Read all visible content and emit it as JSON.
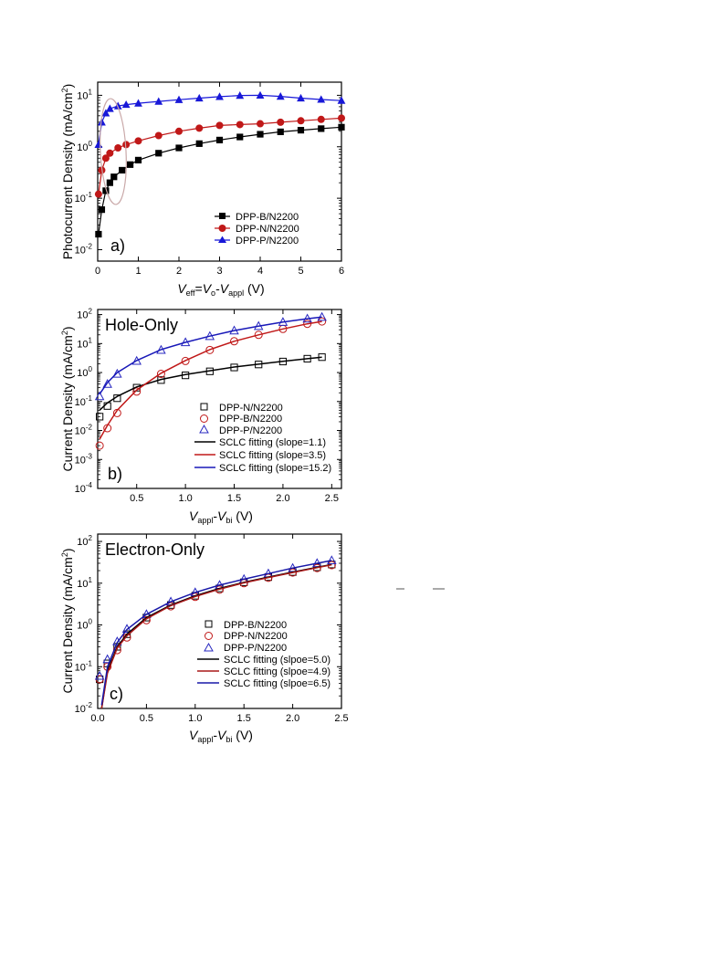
{
  "chart_data": [
    {
      "type": "scatter",
      "yscale": "log",
      "panel_label": "a)",
      "xlabel": "Veff=Vo-Vappl (V)",
      "ylabel": "Photocurrent Density (mA/cm2)",
      "xlim": [
        0,
        6
      ],
      "ylim": [
        0.006,
        18
      ],
      "xticks": [
        "0",
        "1",
        "2",
        "3",
        "4",
        "5",
        "6"
      ],
      "yticks": [
        "10-2",
        "10-1",
        "100",
        "101"
      ],
      "legend_position": "lower-right",
      "series": [
        {
          "name": "DPP-B/N2200",
          "color": "#000000",
          "marker": "square",
          "x": [
            0.02,
            0.1,
            0.2,
            0.3,
            0.4,
            0.6,
            0.8,
            1.0,
            1.5,
            2.0,
            2.5,
            3.0,
            3.5,
            4.0,
            4.5,
            5.0,
            5.5,
            6.0
          ],
          "y": [
            0.02,
            0.06,
            0.14,
            0.2,
            0.26,
            0.35,
            0.45,
            0.55,
            0.75,
            0.95,
            1.15,
            1.35,
            1.55,
            1.75,
            1.95,
            2.1,
            2.25,
            2.4
          ]
        },
        {
          "name": "DPP-N/N2200",
          "color": "#c01818",
          "marker": "circle",
          "x": [
            0.02,
            0.1,
            0.2,
            0.3,
            0.5,
            0.7,
            1.0,
            1.5,
            2.0,
            2.5,
            3.0,
            3.5,
            4.0,
            4.5,
            5.0,
            5.5,
            6.0
          ],
          "y": [
            0.12,
            0.35,
            0.6,
            0.75,
            0.95,
            1.1,
            1.3,
            1.65,
            2.0,
            2.3,
            2.6,
            2.7,
            2.8,
            3.0,
            3.2,
            3.4,
            3.6
          ]
        },
        {
          "name": "DPP-P/N2200",
          "color": "#1818d8",
          "marker": "triangle",
          "x": [
            0.02,
            0.1,
            0.2,
            0.3,
            0.5,
            0.7,
            1.0,
            1.5,
            2.0,
            2.5,
            3.0,
            3.5,
            4.0,
            4.5,
            5.0,
            5.5,
            6.0
          ],
          "y": [
            1.1,
            3.0,
            4.5,
            5.5,
            6.2,
            6.6,
            7.0,
            7.6,
            8.2,
            8.8,
            9.4,
            9.9,
            10.0,
            9.5,
            8.8,
            8.3,
            7.9
          ]
        }
      ],
      "annotations": [
        "ellipse around low-Veff region (~0.1-0.6 V)"
      ]
    },
    {
      "type": "scatter",
      "yscale": "log",
      "title": "Hole-Only",
      "panel_label": "b)",
      "xlabel": "Vappl-Vbi (V)",
      "ylabel": "Current Density (mA/cm2)",
      "xlim": [
        0.1,
        2.6
      ],
      "ylim": [
        0.0001,
        150
      ],
      "xticks": [
        "0.5",
        "1.0",
        "1.5",
        "2.0",
        "2.5"
      ],
      "yticks": [
        "10-4",
        "10-3",
        "10-2",
        "10-1",
        "100",
        "101",
        "102"
      ],
      "legend_position": "lower-right",
      "series": [
        {
          "name": "DPP-N/N2200",
          "color": "#000000",
          "marker": "open-square",
          "x": [
            0.12,
            0.2,
            0.3,
            0.5,
            0.75,
            1.0,
            1.25,
            1.5,
            1.75,
            2.0,
            2.25,
            2.4
          ],
          "y": [
            0.03,
            0.07,
            0.13,
            0.3,
            0.55,
            0.8,
            1.1,
            1.5,
            1.9,
            2.4,
            3.0,
            3.4
          ]
        },
        {
          "name": "DPP-B/N2200",
          "color": "#c01818",
          "marker": "open-circle",
          "x": [
            0.12,
            0.2,
            0.3,
            0.5,
            0.75,
            1.0,
            1.25,
            1.5,
            1.75,
            2.0,
            2.25,
            2.4
          ],
          "y": [
            0.003,
            0.012,
            0.04,
            0.22,
            0.9,
            2.5,
            6.0,
            12.0,
            20.0,
            32.0,
            48.0,
            58.0
          ]
        },
        {
          "name": "DPP-P/N2200",
          "color": "#2828c0",
          "marker": "open-triangle",
          "x": [
            0.12,
            0.2,
            0.3,
            0.5,
            0.75,
            1.0,
            1.25,
            1.5,
            1.75,
            2.0,
            2.25,
            2.4
          ],
          "y": [
            0.15,
            0.4,
            0.9,
            2.5,
            6.0,
            11.0,
            18.0,
            28.0,
            40.0,
            55.0,
            72.0,
            82.0
          ]
        },
        {
          "name": "SCLC fitting (slope=1.1)",
          "color": "#000000",
          "marker": "line",
          "x": [
            0.12,
            0.2,
            0.3,
            0.5,
            0.75,
            1.0,
            1.25,
            1.5,
            1.75,
            2.0,
            2.25,
            2.4
          ],
          "y": [
            0.05,
            0.09,
            0.15,
            0.32,
            0.58,
            0.85,
            1.15,
            1.55,
            1.95,
            2.45,
            3.0,
            3.4
          ]
        },
        {
          "name": "SCLC fitting (slope=3.5)",
          "color": "#c01818",
          "marker": "line",
          "x": [
            0.12,
            0.2,
            0.3,
            0.5,
            0.75,
            1.0,
            1.25,
            1.5,
            1.75,
            2.0,
            2.25,
            2.4
          ],
          "y": [
            0.005,
            0.015,
            0.05,
            0.25,
            0.95,
            2.6,
            6.2,
            12.0,
            20.0,
            32.0,
            48.0,
            58.0
          ]
        },
        {
          "name": "SCLC fitting (slope=15.2)",
          "color": "#1818b8",
          "marker": "line",
          "x": [
            0.12,
            0.2,
            0.3,
            0.5,
            0.75,
            1.0,
            1.25,
            1.5,
            1.75,
            2.0,
            2.25,
            2.4
          ],
          "y": [
            0.18,
            0.45,
            1.0,
            2.6,
            6.2,
            11.0,
            18.0,
            28.0,
            40.0,
            55.0,
            72.0,
            82.0
          ]
        }
      ]
    },
    {
      "type": "scatter",
      "yscale": "log",
      "title": "Electron-Only",
      "panel_label": "c)",
      "xlabel": "Vappl-Vbi (V)",
      "ylabel": "Current Density (mA/cm2)",
      "xlim": [
        0,
        2.5
      ],
      "ylim": [
        0.01,
        150
      ],
      "xticks": [
        "0.0",
        "0.5",
        "1.0",
        "1.5",
        "2.0",
        "2.5"
      ],
      "yticks": [
        "10-2",
        "10-1",
        "100",
        "101",
        "102"
      ],
      "legend_position": "lower-right",
      "series": [
        {
          "name": "DPP-B/N2200",
          "color": "#000000",
          "marker": "open-square",
          "x": [
            0.02,
            0.1,
            0.2,
            0.3,
            0.5,
            0.75,
            1.0,
            1.25,
            1.5,
            1.75,
            2.0,
            2.25,
            2.4
          ],
          "y": [
            0.05,
            0.12,
            0.3,
            0.6,
            1.5,
            3.0,
            5.0,
            7.5,
            10.5,
            14.0,
            18.5,
            24.0,
            28.0
          ]
        },
        {
          "name": "DPP-N/N2200",
          "color": "#c01818",
          "marker": "open-circle",
          "x": [
            0.02,
            0.1,
            0.2,
            0.3,
            0.5,
            0.75,
            1.0,
            1.25,
            1.5,
            1.75,
            2.0,
            2.25,
            2.4
          ],
          "y": [
            0.05,
            0.1,
            0.25,
            0.5,
            1.3,
            2.8,
            4.7,
            7.0,
            10.0,
            13.5,
            18.0,
            23.0,
            27.0
          ]
        },
        {
          "name": "DPP-P/N2200",
          "color": "#2828c0",
          "marker": "open-triangle",
          "x": [
            0.02,
            0.1,
            0.2,
            0.3,
            0.5,
            0.75,
            1.0,
            1.25,
            1.5,
            1.75,
            2.0,
            2.25,
            2.4
          ],
          "y": [
            0.06,
            0.15,
            0.4,
            0.8,
            1.8,
            3.6,
            6.0,
            9.0,
            12.5,
            17.0,
            23.0,
            30.0,
            35.0
          ]
        },
        {
          "name": "SCLC fitting (slpoe=5.0)",
          "color": "#000000",
          "marker": "line",
          "x": [
            0.04,
            0.1,
            0.2,
            0.3,
            0.5,
            0.75,
            1.0,
            1.25,
            1.5,
            1.75,
            2.0,
            2.25,
            2.4
          ],
          "y": [
            0.01,
            0.08,
            0.3,
            0.6,
            1.5,
            3.0,
            5.0,
            7.5,
            10.5,
            14.0,
            18.5,
            24.0,
            28.0
          ]
        },
        {
          "name": "SCLC fitting (slpoe=4.9)",
          "color": "#a81818",
          "marker": "line",
          "x": [
            0.04,
            0.1,
            0.2,
            0.3,
            0.5,
            0.75,
            1.0,
            1.25,
            1.5,
            1.75,
            2.0,
            2.25,
            2.4
          ],
          "y": [
            0.01,
            0.07,
            0.28,
            0.55,
            1.4,
            2.9,
            4.8,
            7.2,
            10.2,
            13.6,
            18.0,
            23.5,
            27.5
          ]
        },
        {
          "name": "SCLC fitting (slpoe=6.5)",
          "color": "#1818a8",
          "marker": "line",
          "x": [
            0.04,
            0.1,
            0.2,
            0.3,
            0.5,
            0.75,
            1.0,
            1.25,
            1.5,
            1.75,
            2.0,
            2.25,
            2.4
          ],
          "y": [
            0.012,
            0.1,
            0.38,
            0.78,
            1.8,
            3.6,
            6.0,
            9.0,
            12.5,
            17.0,
            23.0,
            30.0,
            35.0
          ]
        }
      ]
    }
  ]
}
